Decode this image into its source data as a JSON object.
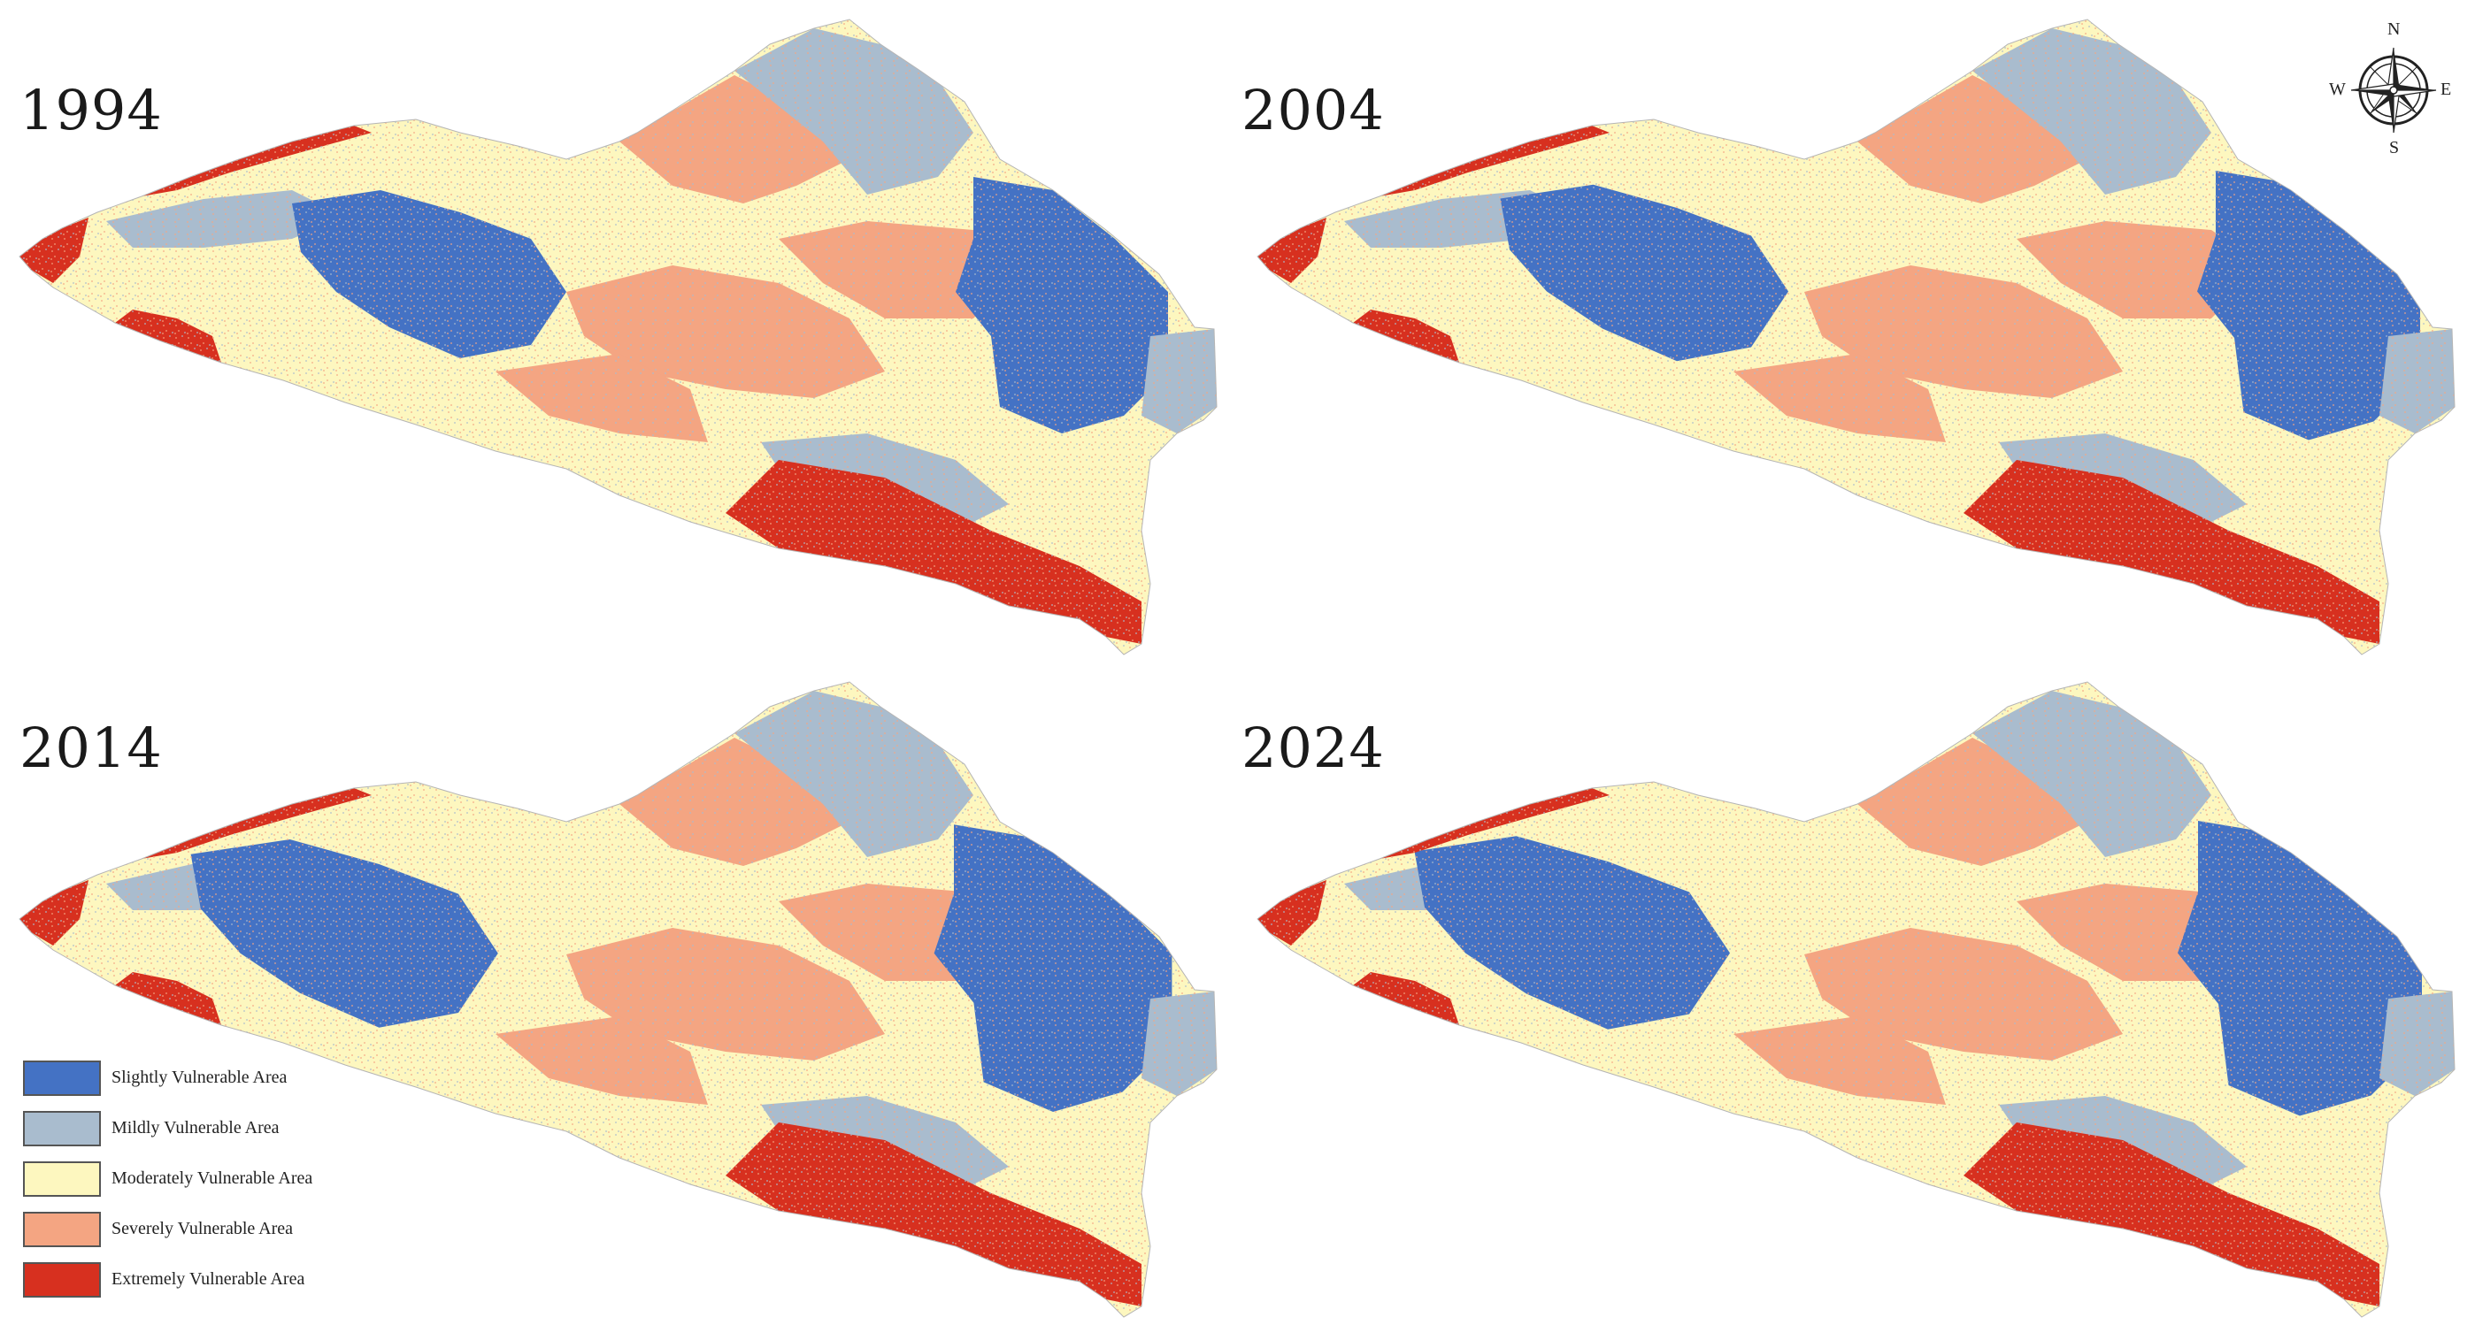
{
  "figure": {
    "panels": [
      {
        "year": "1994"
      },
      {
        "year": "2004"
      },
      {
        "year": "2014"
      },
      {
        "year": "2024"
      }
    ],
    "legend": [
      {
        "label": "Slightly Vulnerable Area",
        "color": "#4472c4"
      },
      {
        "label": "Mildly Vulnerable Area",
        "color": "#a9bcce"
      },
      {
        "label": "Moderately Vulnerable Area",
        "color": "#fdf7bf"
      },
      {
        "label": "Severely Vulnerable Area",
        "color": "#f4a582"
      },
      {
        "label": "Extremely Vulnerable Area",
        "color": "#d7301f"
      }
    ],
    "compass": {
      "n": "N",
      "s": "S",
      "e": "E",
      "w": "W"
    }
  }
}
